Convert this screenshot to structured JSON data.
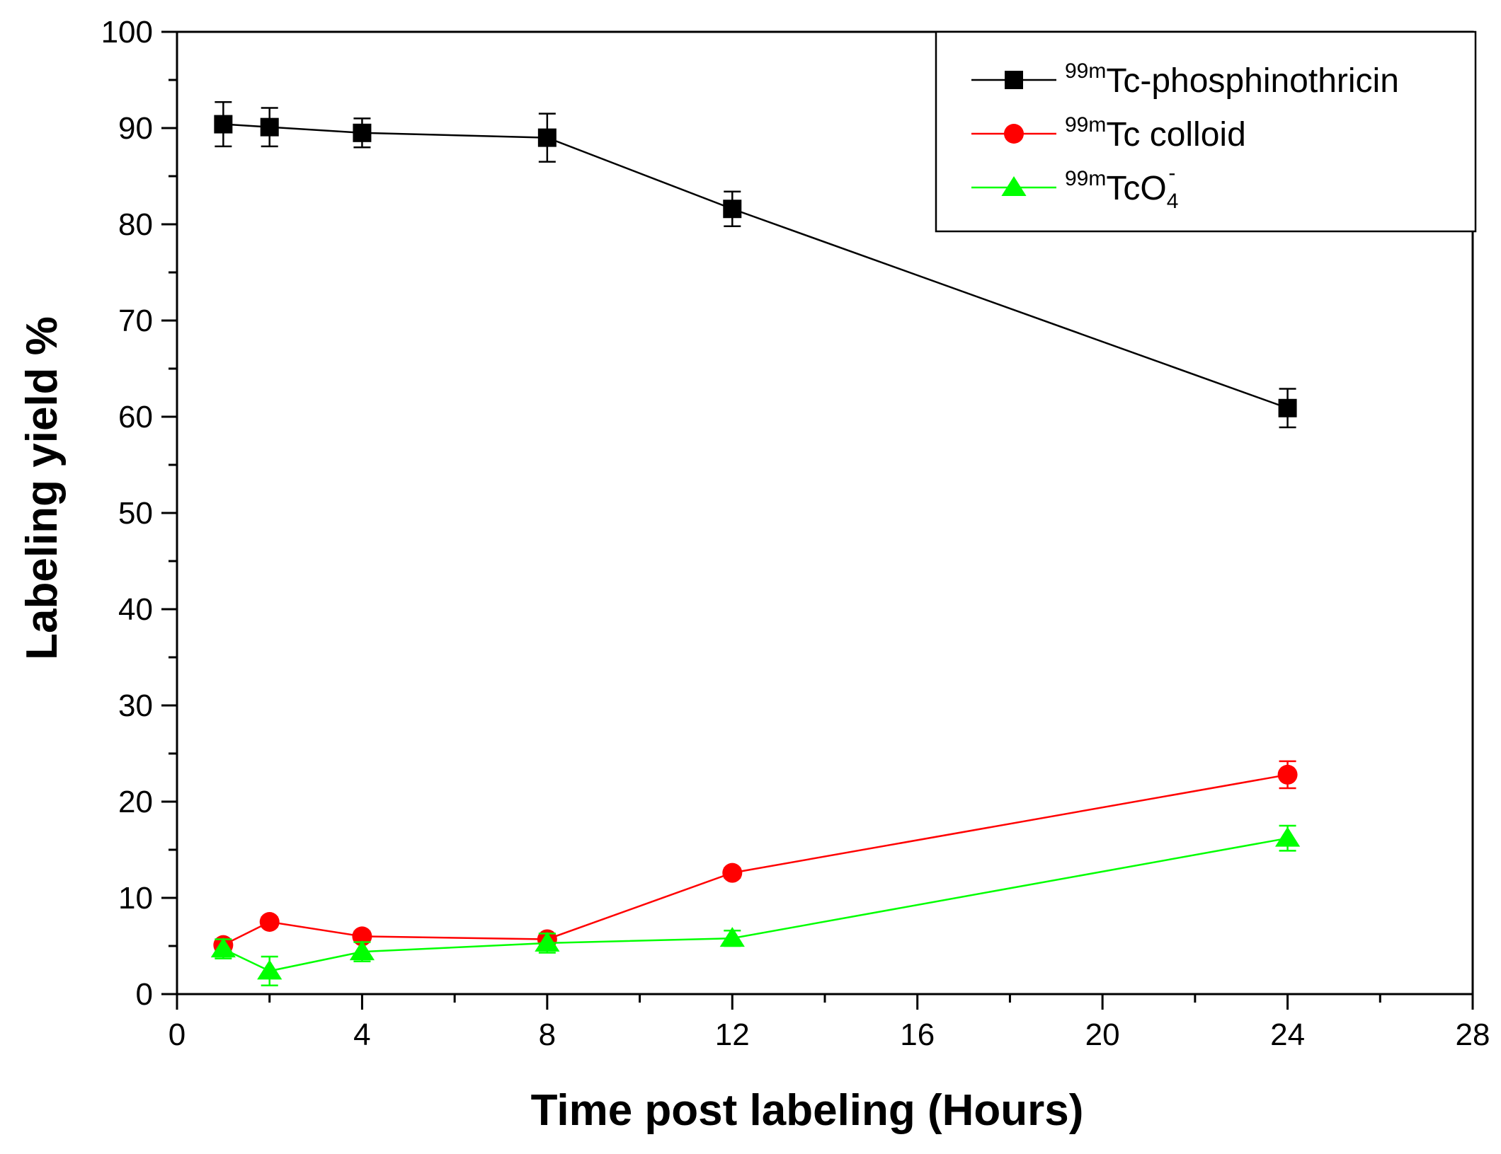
{
  "chart_data": {
    "type": "line",
    "title": "",
    "xlabel": "Time post labeling (Hours)",
    "ylabel": "Labeling yield %",
    "xlim": [
      0,
      28
    ],
    "ylim": [
      0,
      100
    ],
    "x_major_ticks": [
      0,
      4,
      8,
      12,
      16,
      20,
      24,
      28
    ],
    "x_minor_ticks": [
      2,
      6,
      10,
      14,
      18,
      22,
      26
    ],
    "y_major_ticks": [
      0,
      10,
      20,
      30,
      40,
      50,
      60,
      70,
      80,
      90,
      100
    ],
    "y_minor_step": 5,
    "tick_labels_x": [
      "0",
      "4",
      "8",
      "12",
      "16",
      "20",
      "24",
      "28"
    ],
    "tick_labels_y": [
      "0",
      "10",
      "20",
      "30",
      "40",
      "50",
      "60",
      "70",
      "80",
      "90",
      "100"
    ],
    "grid": false,
    "legend_position": "top-right",
    "x": [
      1,
      2,
      4,
      8,
      12,
      24
    ],
    "series": [
      {
        "name": "99mTc-phosphinothricin",
        "label_sup": "99m",
        "label_main": "Tc-phosphinothricin",
        "label_sub": "",
        "label_sup2": "",
        "color": "#000000",
        "marker": "square",
        "values": [
          90.4,
          90.1,
          89.5,
          89.0,
          81.6,
          60.9
        ],
        "errors": [
          2.3,
          2.0,
          1.5,
          2.5,
          1.8,
          2.0
        ]
      },
      {
        "name": "99mTc colloid",
        "label_sup": "99m",
        "label_main": "Tc colloid",
        "label_sub": "",
        "label_sup2": "",
        "color": "#ff0000",
        "marker": "circle",
        "values": [
          5.1,
          7.5,
          6.0,
          5.7,
          12.6,
          22.8
        ],
        "errors": [
          0.5,
          0.5,
          0.5,
          0.5,
          0.5,
          1.4
        ]
      },
      {
        "name": "99mTcO4-",
        "label_sup": "99m",
        "label_main": "TcO",
        "label_sub": "4",
        "label_sup2": "-",
        "color": "#00ff00",
        "marker": "triangle",
        "values": [
          4.7,
          2.4,
          4.4,
          5.3,
          5.8,
          16.2
        ],
        "errors": [
          1.0,
          1.5,
          1.0,
          1.0,
          0.8,
          1.3
        ]
      }
    ]
  }
}
